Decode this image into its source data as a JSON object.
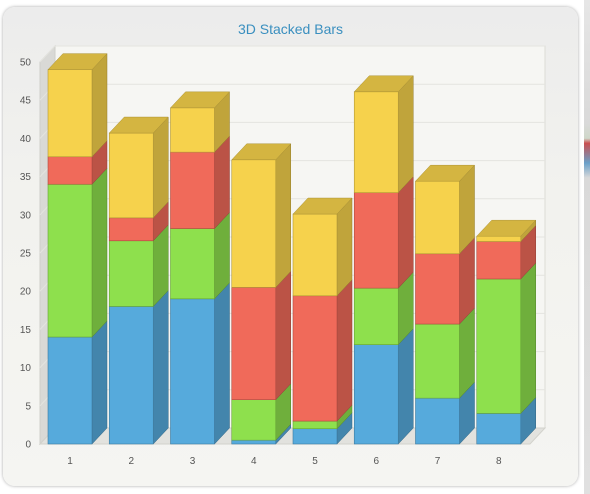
{
  "chart_data": {
    "type": "bar",
    "stacked": true,
    "three_d": true,
    "title": "3D Stacked Bars",
    "xlabel": "",
    "ylabel": "",
    "categories": [
      "1",
      "2",
      "3",
      "4",
      "5",
      "6",
      "7",
      "8"
    ],
    "ylim": [
      0,
      50
    ],
    "yticks": [
      "0",
      "5",
      "10",
      "15",
      "20",
      "25",
      "30",
      "35",
      "40",
      "45",
      "50"
    ],
    "grid": true,
    "legend": "none",
    "series": [
      {
        "color": "#56aadc",
        "values": [
          14,
          18,
          19,
          0.5,
          2,
          13,
          6,
          4
        ]
      },
      {
        "color": "#8ee04d",
        "values": [
          20,
          8.6,
          9.2,
          5.3,
          1,
          7.4,
          9.7,
          17.6
        ]
      },
      {
        "color": "#f06a5a",
        "values": [
          3.6,
          3,
          10,
          14.7,
          16.4,
          12.5,
          9.2,
          4.9
        ]
      },
      {
        "color": "#f6d24c",
        "values": [
          11.4,
          11.1,
          5.8,
          16.7,
          10.7,
          13.2,
          9.5,
          0.7
        ]
      }
    ]
  }
}
